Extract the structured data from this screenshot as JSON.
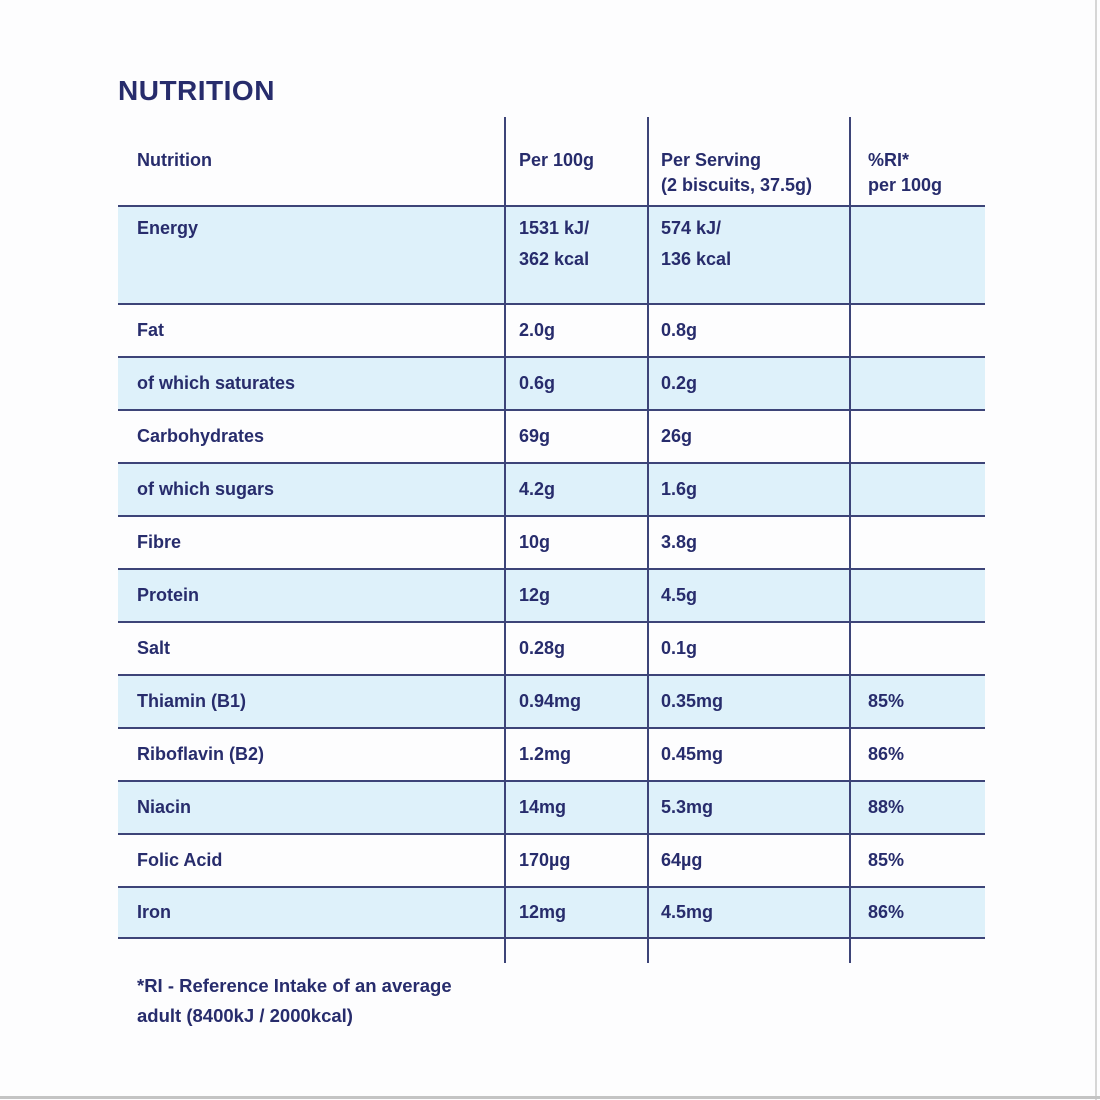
{
  "colors": {
    "text_navy": "#272c6c",
    "grid_line": "#3d4478",
    "row_highlight_blue": "#def1fa",
    "background": "#fdfdfe"
  },
  "title": "NUTRITION",
  "table": {
    "columns": [
      "Nutrition",
      "Per 100g",
      "Per Serving\n(2 biscuits, 37.5g)",
      "%RI*\nper 100g"
    ],
    "rows": [
      {
        "label": "Energy",
        "per_100g": "1531 kJ/\n362 kcal",
        "per_serving": "574 kJ/\n136 kcal",
        "ri_per_100g": ""
      },
      {
        "label": "Fat",
        "per_100g": "2.0g",
        "per_serving": "0.8g",
        "ri_per_100g": ""
      },
      {
        "label": "of which saturates",
        "per_100g": "0.6g",
        "per_serving": "0.2g",
        "ri_per_100g": ""
      },
      {
        "label": "Carbohydrates",
        "per_100g": "69g",
        "per_serving": "26g",
        "ri_per_100g": ""
      },
      {
        "label": "of which sugars",
        "per_100g": "4.2g",
        "per_serving": "1.6g",
        "ri_per_100g": ""
      },
      {
        "label": "Fibre",
        "per_100g": "10g",
        "per_serving": "3.8g",
        "ri_per_100g": ""
      },
      {
        "label": "Protein",
        "per_100g": "12g",
        "per_serving": "4.5g",
        "ri_per_100g": ""
      },
      {
        "label": "Salt",
        "per_100g": "0.28g",
        "per_serving": "0.1g",
        "ri_per_100g": ""
      },
      {
        "label": "Thiamin (B1)",
        "per_100g": "0.94mg",
        "per_serving": "0.35mg",
        "ri_per_100g": "85%"
      },
      {
        "label": "Riboflavin (B2)",
        "per_100g": "1.2mg",
        "per_serving": "0.45mg",
        "ri_per_100g": "86%"
      },
      {
        "label": "Niacin",
        "per_100g": "14mg",
        "per_serving": "5.3mg",
        "ri_per_100g": "88%"
      },
      {
        "label": "Folic Acid",
        "per_100g": "170µg",
        "per_serving": "64µg",
        "ri_per_100g": "85%"
      },
      {
        "label": "Iron",
        "per_100g": "12mg",
        "per_serving": "4.5mg",
        "ri_per_100g": "86%"
      }
    ]
  },
  "footnote": "*RI - Reference Intake of an average\nadult (8400kJ / 2000kcal)"
}
